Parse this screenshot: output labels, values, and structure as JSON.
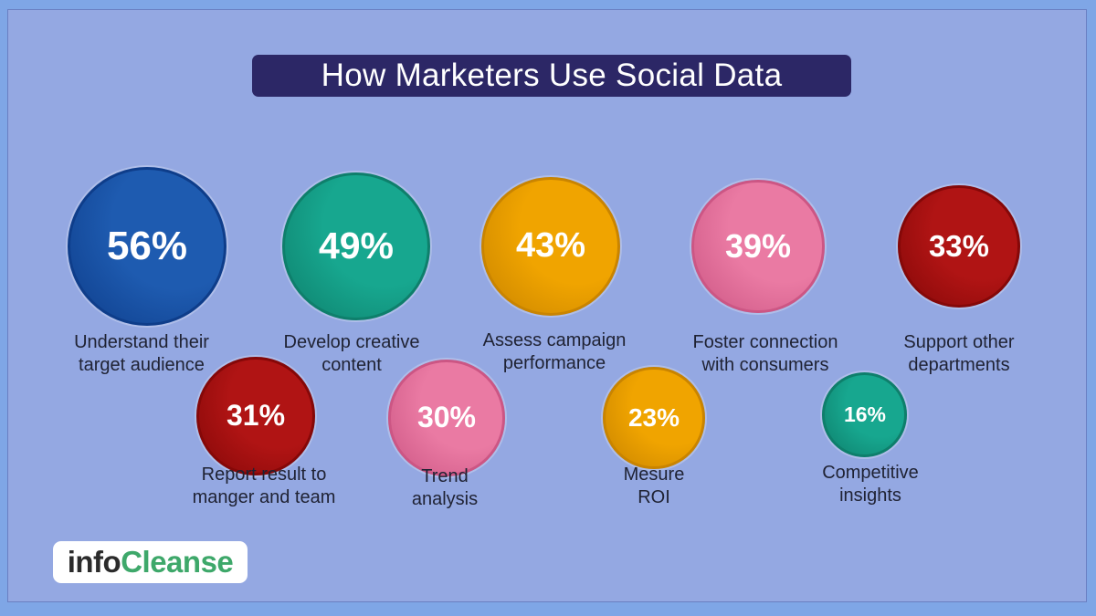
{
  "title": "How Marketers Use Social Data",
  "logo": {
    "part1": "info",
    "part2": "Cleanse"
  },
  "chart_data": {
    "type": "bubble",
    "title": "How Marketers Use Social Data",
    "unit": "%",
    "items": [
      {
        "label": "Understand their\ntarget audience",
        "value": 56,
        "display": "56%",
        "color": "#1e5bb0",
        "edge": "#0e3d8a"
      },
      {
        "label": "Develop creative\ncontent",
        "value": 49,
        "display": "49%",
        "color": "#17a78f",
        "edge": "#0e7f6b"
      },
      {
        "label": "Assess campaign\nperformance",
        "value": 43,
        "display": "43%",
        "color": "#f0a400",
        "edge": "#c98400"
      },
      {
        "label": "Foster connection\nwith consumers",
        "value": 39,
        "display": "39%",
        "color": "#ea7aa3",
        "edge": "#cc5684"
      },
      {
        "label": "Support other\ndepartments",
        "value": 33,
        "display": "33%",
        "color": "#b01414",
        "edge": "#850808"
      },
      {
        "label": "Report result to\nmanger and team",
        "value": 31,
        "display": "31%",
        "color": "#b01414",
        "edge": "#850808"
      },
      {
        "label": "Trend\nanalysis",
        "value": 30,
        "display": "30%",
        "color": "#ea7aa3",
        "edge": "#cc5684"
      },
      {
        "label": "Mesure\nROI",
        "value": 23,
        "display": "23%",
        "color": "#f0a400",
        "edge": "#c98400"
      },
      {
        "label": "Competitive\ninsights",
        "value": 16,
        "display": "16%",
        "color": "#17a78f",
        "edge": "#0e7f6b"
      }
    ]
  }
}
